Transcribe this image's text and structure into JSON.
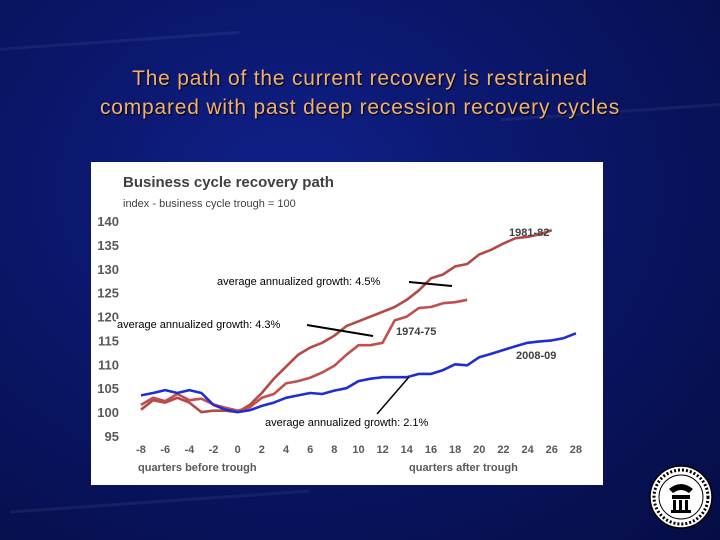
{
  "slide": {
    "title_line1": "The path of the current recovery is restrained",
    "title_line2": "compared with past deep recession recovery cycles"
  },
  "colors": {
    "red_dark": "#b44a46",
    "red_light": "#c0504d",
    "blue": "#1f2ed0",
    "title": "#f0b070"
  },
  "annotations": {
    "a1": "average annualized growth: 4.5%",
    "a2": "average annualized growth: 4.3%",
    "a3": "average annualized growth: 2.1%"
  },
  "seal": {
    "icon": "federal-reserve-seal-icon"
  },
  "chart_data": {
    "type": "line",
    "title": "Business cycle recovery path",
    "subtitle": "index - business cycle trough = 100",
    "xlabel_left": "quarters before trough",
    "xlabel_right": "quarters after trough",
    "ylim": [
      95,
      140
    ],
    "yticks": [
      95,
      100,
      105,
      110,
      115,
      120,
      125,
      130,
      135,
      140
    ],
    "xticks": [
      -8,
      -6,
      -4,
      -2,
      0,
      2,
      4,
      6,
      8,
      10,
      12,
      14,
      16,
      18,
      20,
      22,
      24,
      26,
      28
    ],
    "x": [
      -8,
      -7,
      -6,
      -5,
      -4,
      -3,
      -2,
      -1,
      0,
      1,
      2,
      3,
      4,
      5,
      6,
      7,
      8,
      9,
      10,
      11,
      12,
      13,
      14,
      15,
      16,
      17,
      18,
      19,
      20,
      21,
      22,
      23,
      24,
      25,
      26,
      27,
      28
    ],
    "series": [
      {
        "name": "1981-82",
        "color": "#b44a46",
        "values": [
          100.5,
          102.5,
          102,
          103,
          102,
          100,
          100.3,
          100.3,
          100,
          101.5,
          104,
          107,
          109.5,
          112,
          113.5,
          114.5,
          116,
          118,
          119,
          120,
          121,
          122,
          123.5,
          125.5,
          128,
          128.8,
          130.5,
          131,
          133,
          134,
          135.3,
          136.4,
          136.7,
          137.2,
          138.1,
          null,
          null
        ]
      },
      {
        "name": "1974-75",
        "color": "#c0504d",
        "values": [
          101.5,
          103,
          102.3,
          103.8,
          102.5,
          102.8,
          101.6,
          100.9,
          100.3,
          101,
          103,
          103.8,
          106,
          106.5,
          107.2,
          108.3,
          109.7,
          112,
          114,
          114,
          114.5,
          119.2,
          120,
          121.8,
          122,
          122.8,
          123,
          123.5,
          null,
          null,
          null,
          null,
          null,
          null,
          null,
          null,
          null
        ]
      },
      {
        "name": "2008-09",
        "color": "#1f2ed0",
        "values": [
          103.5,
          104,
          104.6,
          104,
          104.6,
          104,
          101.5,
          100.5,
          100,
          100.4,
          101.3,
          102,
          103,
          103.5,
          104,
          103.8,
          104.5,
          105,
          106.5,
          107,
          107.3,
          107.3,
          107.3,
          108,
          108,
          108.8,
          110,
          109.8,
          111.5,
          112.2,
          113,
          113.8,
          114.5,
          114.8,
          115,
          115.5,
          116.5
        ]
      }
    ],
    "series_label_positions_note": "labels shown near line ends"
  }
}
